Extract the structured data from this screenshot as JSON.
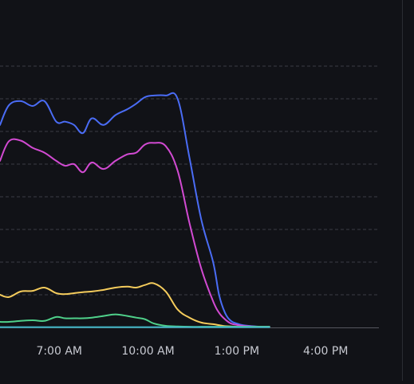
{
  "chart_data": {
    "type": "line",
    "title": "",
    "xlabel": "",
    "ylabel": "",
    "x_ticks": [
      "7:00 AM",
      "10:00 AM",
      "1:00 PM",
      "4:00 PM"
    ],
    "x_tick_positions": [
      7,
      10,
      13,
      16
    ],
    "xlim": [
      5,
      17.8
    ],
    "ylim": [
      0,
      8
    ],
    "grid": true,
    "grid_lines": [
      1,
      2,
      3,
      4,
      5,
      6,
      7,
      8
    ],
    "legend": "none",
    "series": [
      {
        "color": "#4a6cf5",
        "x": [
          5.0,
          5.3,
          5.7,
          6.1,
          6.5,
          6.9,
          7.2,
          7.5,
          7.8,
          8.1,
          8.5,
          8.9,
          9.3,
          9.6,
          9.9,
          10.2,
          10.6,
          11.0,
          11.4,
          11.8,
          12.2,
          12.4,
          12.6,
          12.8,
          13.0,
          13.2,
          13.5,
          13.8,
          14.1
        ],
        "y": [
          6.2,
          6.8,
          6.93,
          6.78,
          6.93,
          6.3,
          6.3,
          6.2,
          5.95,
          6.4,
          6.2,
          6.5,
          6.68,
          6.85,
          7.05,
          7.1,
          7.1,
          7.0,
          5.2,
          3.3,
          2.0,
          1.0,
          0.45,
          0.2,
          0.12,
          0.07,
          0.04,
          0.02,
          0.02
        ]
      },
      {
        "color": "#d24ad2",
        "x": [
          5.0,
          5.3,
          5.7,
          6.1,
          6.5,
          6.9,
          7.2,
          7.5,
          7.8,
          8.1,
          8.5,
          8.9,
          9.3,
          9.6,
          9.9,
          10.2,
          10.6,
          11.0,
          11.4,
          11.8,
          12.2,
          12.4,
          12.6,
          12.8,
          13.0,
          13.2,
          13.5,
          13.8,
          14.1
        ],
        "y": [
          5.1,
          5.7,
          5.72,
          5.5,
          5.35,
          5.1,
          4.95,
          5.0,
          4.75,
          5.05,
          4.85,
          5.1,
          5.3,
          5.35,
          5.6,
          5.65,
          5.55,
          4.8,
          3.2,
          1.8,
          0.8,
          0.45,
          0.25,
          0.12,
          0.08,
          0.05,
          0.03,
          0.02,
          0.02
        ]
      },
      {
        "color": "#f5cc5c",
        "x": [
          5.0,
          5.3,
          5.7,
          6.1,
          6.5,
          6.9,
          7.2,
          7.5,
          7.8,
          8.1,
          8.5,
          8.9,
          9.3,
          9.6,
          9.9,
          10.2,
          10.6,
          11.0,
          11.4,
          11.8,
          12.2,
          12.4,
          12.6,
          12.8,
          13.0,
          13.2,
          13.5,
          13.8,
          14.1
        ],
        "y": [
          1.0,
          0.93,
          1.1,
          1.12,
          1.22,
          1.05,
          1.02,
          1.05,
          1.08,
          1.1,
          1.15,
          1.22,
          1.25,
          1.22,
          1.3,
          1.35,
          1.1,
          0.55,
          0.3,
          0.15,
          0.1,
          0.07,
          0.04,
          0.03,
          0.02,
          0.02,
          0.02,
          0.02,
          0.02
        ]
      },
      {
        "color": "#4fd08a",
        "x": [
          5.0,
          5.3,
          5.7,
          6.1,
          6.5,
          6.9,
          7.2,
          7.5,
          7.8,
          8.1,
          8.5,
          8.9,
          9.3,
          9.6,
          9.9,
          10.2,
          10.6,
          11.0,
          11.4,
          11.8,
          12.2,
          12.4,
          12.6,
          12.8,
          13.0,
          13.2,
          13.5,
          13.8,
          14.1
        ],
        "y": [
          0.17,
          0.17,
          0.2,
          0.22,
          0.2,
          0.32,
          0.28,
          0.28,
          0.28,
          0.3,
          0.35,
          0.4,
          0.35,
          0.3,
          0.25,
          0.12,
          0.05,
          0.03,
          0.02,
          0.02,
          0.02,
          0.02,
          0.02,
          0.02,
          0.02,
          0.02,
          0.02,
          0.02,
          0.02
        ]
      },
      {
        "color": "#3fb6c6",
        "x": [
          5.0,
          6.0,
          7.0,
          8.0,
          9.0,
          10.0,
          11.0,
          12.0,
          13.0,
          14.1
        ],
        "y": [
          0.01,
          0.01,
          0.01,
          0.01,
          0.01,
          0.01,
          0.01,
          0.01,
          0.01,
          0.01
        ]
      }
    ]
  }
}
